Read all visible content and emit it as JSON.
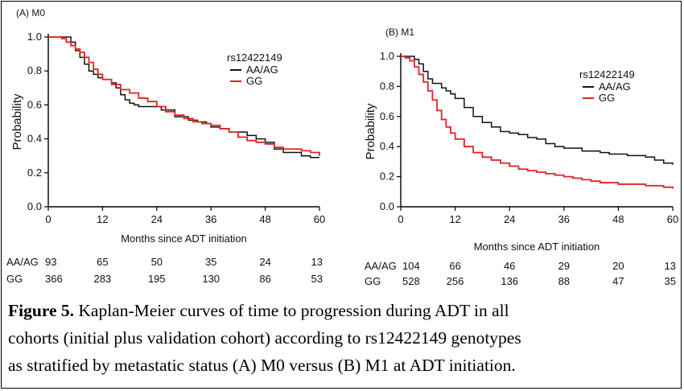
{
  "colors": {
    "AA/AG": "#111111",
    "GG": "#e02424",
    "axis": "#000000"
  },
  "chart_data": [
    {
      "type": "line",
      "title": "(A) M0",
      "xlabel": "Months since ADT initiation",
      "ylabel": "Probability",
      "xlim": [
        0,
        60
      ],
      "ylim": [
        0,
        1
      ],
      "xticks": [
        "0",
        "12",
        "24",
        "36",
        "48",
        "60"
      ],
      "yticks": [
        "0.0",
        "0.2",
        "0.4",
        "0.6",
        "0.8",
        "1.0"
      ],
      "legend": {
        "title": "rs12422149",
        "entries": [
          "AA/AG",
          "GG"
        ]
      },
      "series": [
        {
          "name": "AA/AG",
          "color": "#111111",
          "x": [
            0,
            3,
            5,
            6,
            7,
            8,
            9,
            10,
            11,
            12,
            14,
            15,
            16,
            17,
            18,
            19,
            20,
            22,
            24,
            25,
            27,
            28,
            30,
            31,
            33,
            35,
            36,
            38,
            40,
            42,
            44,
            46,
            48,
            50,
            52,
            54,
            56,
            58,
            60
          ],
          "y": [
            1.0,
            1.0,
            0.97,
            0.92,
            0.88,
            0.84,
            0.8,
            0.78,
            0.76,
            0.75,
            0.73,
            0.7,
            0.66,
            0.63,
            0.61,
            0.6,
            0.59,
            0.59,
            0.59,
            0.57,
            0.57,
            0.53,
            0.53,
            0.51,
            0.5,
            0.49,
            0.47,
            0.46,
            0.44,
            0.44,
            0.42,
            0.4,
            0.38,
            0.34,
            0.32,
            0.32,
            0.3,
            0.29,
            0.29
          ]
        },
        {
          "name": "GG",
          "color": "#e02424",
          "x": [
            0,
            1,
            3,
            4,
            5,
            6,
            7,
            8,
            9,
            10,
            11,
            12,
            14,
            16,
            18,
            20,
            22,
            24,
            26,
            28,
            30,
            32,
            34,
            36,
            38,
            40,
            42,
            44,
            46,
            48,
            50,
            52,
            54,
            56,
            58,
            60
          ],
          "y": [
            1.0,
            1.0,
            0.99,
            0.97,
            0.95,
            0.93,
            0.91,
            0.88,
            0.85,
            0.81,
            0.78,
            0.75,
            0.72,
            0.69,
            0.67,
            0.64,
            0.62,
            0.59,
            0.56,
            0.54,
            0.52,
            0.5,
            0.49,
            0.48,
            0.46,
            0.44,
            0.41,
            0.39,
            0.38,
            0.37,
            0.35,
            0.34,
            0.34,
            0.33,
            0.32,
            0.3
          ]
        }
      ],
      "risk_table": {
        "rows": [
          {
            "label": "AA/AG",
            "counts": [
              "93",
              "65",
              "50",
              "35",
              "24",
              "13"
            ]
          },
          {
            "label": "GG",
            "counts": [
              "366",
              "283",
              "195",
              "130",
              "86",
              "53"
            ]
          }
        ]
      }
    },
    {
      "type": "line",
      "title": "(B) M1",
      "xlabel": "Months since ADT initiation",
      "ylabel": "Probability",
      "xlim": [
        0,
        60
      ],
      "ylim": [
        0,
        1
      ],
      "xticks": [
        "0",
        "12",
        "24",
        "36",
        "48",
        "60"
      ],
      "yticks": [
        "0.0",
        "0.2",
        "0.4",
        "0.6",
        "0.8",
        "1.0"
      ],
      "legend": {
        "title": "rs12422149",
        "entries": [
          "AA/AG",
          "GG"
        ]
      },
      "series": [
        {
          "name": "AA/AG",
          "color": "#111111",
          "x": [
            0,
            2,
            3,
            4,
            5,
            6,
            7,
            8,
            9,
            10,
            11,
            12,
            14,
            16,
            18,
            20,
            22,
            24,
            26,
            28,
            30,
            32,
            34,
            36,
            38,
            40,
            42,
            44,
            46,
            48,
            50,
            52,
            54,
            56,
            58,
            60
          ],
          "y": [
            1.0,
            1.0,
            0.98,
            0.95,
            0.9,
            0.85,
            0.82,
            0.82,
            0.79,
            0.77,
            0.75,
            0.72,
            0.66,
            0.6,
            0.56,
            0.53,
            0.5,
            0.49,
            0.48,
            0.46,
            0.45,
            0.42,
            0.4,
            0.39,
            0.39,
            0.37,
            0.37,
            0.36,
            0.35,
            0.35,
            0.34,
            0.34,
            0.33,
            0.31,
            0.29,
            0.28
          ]
        },
        {
          "name": "GG",
          "color": "#e02424",
          "x": [
            0,
            1,
            2,
            3,
            4,
            5,
            6,
            7,
            8,
            9,
            10,
            11,
            12,
            14,
            16,
            18,
            20,
            22,
            24,
            26,
            28,
            30,
            32,
            34,
            36,
            38,
            40,
            42,
            44,
            46,
            48,
            50,
            52,
            54,
            56,
            58,
            60
          ],
          "y": [
            1.0,
            0.99,
            0.97,
            0.93,
            0.88,
            0.83,
            0.77,
            0.71,
            0.64,
            0.58,
            0.53,
            0.49,
            0.45,
            0.4,
            0.36,
            0.33,
            0.31,
            0.29,
            0.27,
            0.25,
            0.24,
            0.23,
            0.22,
            0.21,
            0.2,
            0.19,
            0.18,
            0.17,
            0.16,
            0.16,
            0.15,
            0.15,
            0.15,
            0.14,
            0.14,
            0.13,
            0.12
          ]
        }
      ],
      "risk_table": {
        "rows": [
          {
            "label": "AA/AG",
            "counts": [
              "104",
              "66",
              "46",
              "29",
              "20",
              "13"
            ]
          },
          {
            "label": "GG",
            "counts": [
              "528",
              "256",
              "136",
              "88",
              "47",
              "35"
            ]
          }
        ]
      }
    }
  ],
  "caption": {
    "label": "Figure 5.",
    "lines": [
      " Kaplan-Meier curves of time to progression during ADT in all",
      "cohorts (initial plus validation cohort) according to rs12422149 genotypes",
      "as stratified by metastatic status (A) M0 versus (B) M1 at ADT initiation."
    ]
  }
}
